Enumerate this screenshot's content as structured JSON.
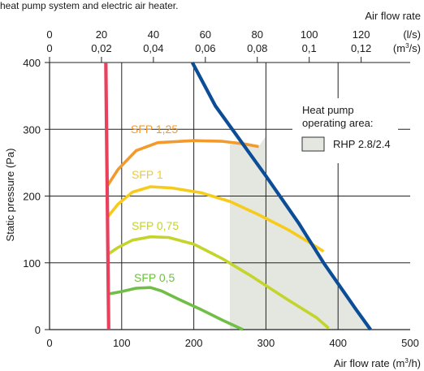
{
  "caption": "heat pump system and electric air heater.",
  "chart_data": {
    "type": "line",
    "x_axis_bottom": {
      "label": "Air flow rate (m",
      "label_sup": "3",
      "label_suffix": "/h)",
      "range": [
        0,
        500
      ],
      "ticks": [
        "0",
        "100",
        "200",
        "300",
        "400",
        "500"
      ]
    },
    "x_axis_top": {
      "title": "Air flow rate",
      "units_ls": "(l/s)",
      "units_m3s_prefix": "(m",
      "units_m3s_sup": "3",
      "units_m3s_suffix": "/s)",
      "ticks_ls": [
        "0",
        "20",
        "40",
        "60",
        "80",
        "100",
        "120"
      ],
      "ticks_m3s": [
        "0",
        "0,02",
        "0,04",
        "0,06",
        "0,08",
        "0,1",
        "0,12"
      ]
    },
    "y_axis": {
      "label": "Static pressure (Pa)",
      "range": [
        0,
        400
      ],
      "ticks": [
        "0",
        "100",
        "200",
        "300",
        "400"
      ]
    },
    "grid": true,
    "series": [
      {
        "name": "SFP 1,25",
        "color": "#f39a2c",
        "values": [
          [
            80,
            215
          ],
          [
            95,
            240
          ],
          [
            120,
            268
          ],
          [
            150,
            280
          ],
          [
            200,
            283
          ],
          [
            240,
            282
          ],
          [
            270,
            278
          ],
          [
            290,
            274
          ]
        ]
      },
      {
        "name": "SFP 1",
        "color": "#f7cb1a",
        "values": [
          [
            80,
            168
          ],
          [
            95,
            188
          ],
          [
            115,
            206
          ],
          [
            140,
            214
          ],
          [
            170,
            212
          ],
          [
            210,
            205
          ],
          [
            250,
            192
          ],
          [
            290,
            172
          ],
          [
            330,
            150
          ],
          [
            370,
            124
          ],
          [
            380,
            117
          ]
        ]
      },
      {
        "name": "SFP 0,75",
        "color": "#c4d42a",
        "values": [
          [
            80,
            112
          ],
          [
            95,
            123
          ],
          [
            115,
            134
          ],
          [
            140,
            139
          ],
          [
            165,
            138
          ],
          [
            200,
            128
          ],
          [
            240,
            106
          ],
          [
            280,
            80
          ],
          [
            330,
            45
          ],
          [
            370,
            18
          ],
          [
            387,
            2
          ]
        ]
      },
      {
        "name": "SFP 0,5",
        "color": "#6fbe45",
        "values": [
          [
            80,
            53
          ],
          [
            100,
            57
          ],
          [
            120,
            62
          ],
          [
            140,
            63
          ],
          [
            155,
            58
          ],
          [
            180,
            45
          ],
          [
            210,
            30
          ],
          [
            240,
            14
          ],
          [
            268,
            0
          ]
        ]
      },
      {
        "color": "#e8405d",
        "values": [
          [
            78,
            400
          ],
          [
            82,
            0
          ]
        ]
      },
      {
        "color": "#0b4d96",
        "values": [
          [
            198,
            400
          ],
          [
            230,
            335
          ],
          [
            300,
            230
          ],
          [
            345,
            160
          ],
          [
            380,
            100
          ],
          [
            425,
            30
          ],
          [
            445,
            0
          ]
        ]
      }
    ],
    "operating_area": {
      "legend_title_line1": "Heat pump",
      "legend_title_line2": "operating area:",
      "legend_entry": "RHP 2.8/2.4",
      "fill": "#e4e6e0",
      "polygon": [
        [
          250,
          0
        ],
        [
          250,
          277
        ],
        [
          270,
          278
        ],
        [
          290,
          274
        ],
        [
          300,
          290
        ],
        [
          300,
          230
        ],
        [
          345,
          160
        ],
        [
          380,
          100
        ],
        [
          425,
          30
        ],
        [
          445,
          0
        ]
      ]
    }
  }
}
